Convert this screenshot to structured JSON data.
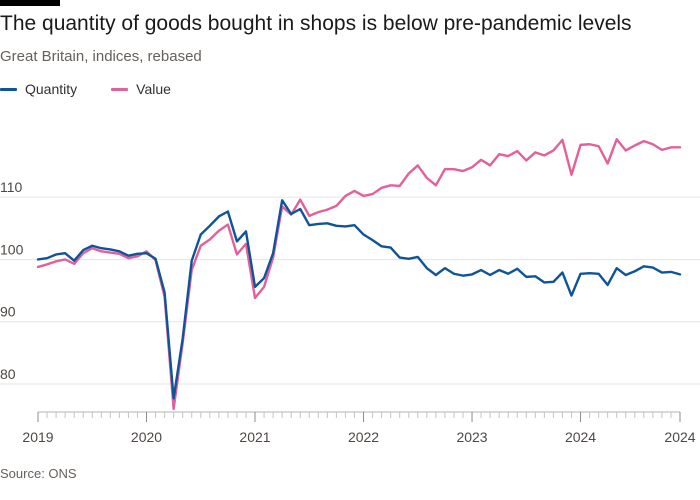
{
  "header": {
    "title": "The quantity of goods bought in shops is below pre-pandemic levels",
    "subtitle": "Great Britain, indices, rebased"
  },
  "legend": {
    "items": [
      {
        "label": "Quantity",
        "color": "#0f5499"
      },
      {
        "label": "Value",
        "color": "#e3609b"
      }
    ]
  },
  "footer": {
    "source": "Source: ONS"
  },
  "chart_data": {
    "type": "line",
    "title": "The quantity of goods bought in shops is below pre-pandemic levels",
    "subtitle": "Great Britain, indices, rebased",
    "xlabel": "",
    "ylabel": "",
    "x_start": "2019-01",
    "x_frequency": "monthly",
    "x_ticks": [
      "2019",
      "2020",
      "2021",
      "2022",
      "2023",
      "2024",
      "2024"
    ],
    "y_ticks": [
      80,
      90,
      100,
      110
    ],
    "ylim": [
      75.5,
      124
    ],
    "grid": true,
    "legend_position": "top-left",
    "series": [
      {
        "name": "Quantity",
        "color": "#0f5499",
        "values": [
          100.0,
          100.2,
          100.8,
          101.0,
          99.8,
          101.5,
          102.2,
          101.8,
          101.6,
          101.3,
          100.6,
          100.9,
          101.0,
          100.1,
          94.7,
          77.7,
          87.3,
          99.8,
          104.0,
          105.4,
          106.9,
          107.7,
          102.9,
          104.5,
          95.6,
          97.0,
          101.0,
          109.5,
          107.3,
          108.1,
          105.5,
          105.7,
          105.8,
          105.4,
          105.3,
          105.5,
          104.0,
          103.1,
          102.1,
          101.9,
          100.3,
          100.1,
          100.4,
          98.6,
          97.5,
          98.6,
          97.7,
          97.4,
          97.6,
          98.3,
          97.5,
          98.3,
          97.7,
          98.5,
          97.2,
          97.3,
          96.3,
          96.4,
          97.9,
          94.2,
          97.7,
          97.8,
          97.7,
          95.9,
          98.6,
          97.5,
          98.1,
          98.9,
          98.7,
          97.9,
          98.0,
          97.6
        ]
      },
      {
        "name": "Value",
        "color": "#e3609b",
        "values": [
          98.8,
          99.2,
          99.7,
          100.0,
          99.3,
          101.0,
          101.8,
          101.3,
          101.1,
          100.9,
          100.2,
          100.5,
          101.3,
          99.9,
          94.0,
          76.0,
          86.6,
          98.3,
          102.2,
          103.2,
          104.6,
          105.6,
          100.8,
          102.5,
          93.8,
          95.6,
          100.3,
          108.5,
          107.2,
          109.6,
          107.0,
          107.6,
          108.0,
          108.6,
          110.2,
          111.0,
          110.2,
          110.5,
          111.5,
          111.9,
          111.8,
          113.8,
          115.1,
          113.1,
          111.9,
          114.5,
          114.5,
          114.2,
          114.8,
          116.0,
          115.1,
          116.9,
          116.6,
          117.4,
          115.9,
          117.2,
          116.7,
          117.5,
          119.2,
          113.6,
          118.4,
          118.5,
          118.2,
          115.4,
          119.3,
          117.5,
          118.3,
          119.0,
          118.5,
          117.6,
          118.0,
          118.0
        ]
      }
    ]
  }
}
